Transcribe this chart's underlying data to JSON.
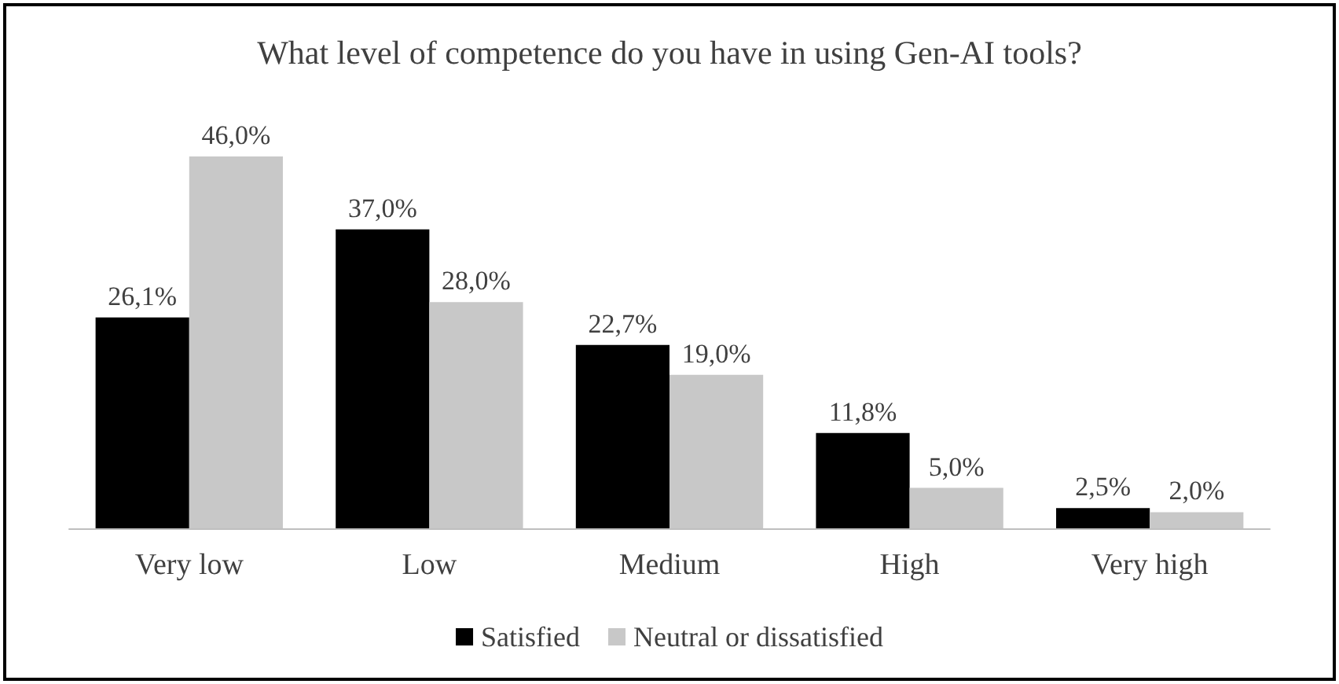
{
  "chart_data": {
    "type": "bar",
    "title": "What level of competence do you have in using Gen-AI tools?",
    "categories": [
      "Very low",
      "Low",
      "Medium",
      "High",
      "Very high"
    ],
    "series": [
      {
        "name": "Satisfied",
        "color": "#000000",
        "values": [
          26.1,
          37.0,
          22.7,
          11.8,
          2.5
        ],
        "value_labels": [
          "26,1%",
          "37,0%",
          "22,7%",
          "11,8%",
          "2,5%"
        ]
      },
      {
        "name": "Neutral or dissatisfied",
        "color": "#c8c8c8",
        "values": [
          46.0,
          28.0,
          19.0,
          5.0,
          2.0
        ],
        "value_labels": [
          "46,0%",
          "28,0%",
          "19,0%",
          "5,0%",
          "2,0%"
        ]
      }
    ],
    "legend": "bottom"
  }
}
